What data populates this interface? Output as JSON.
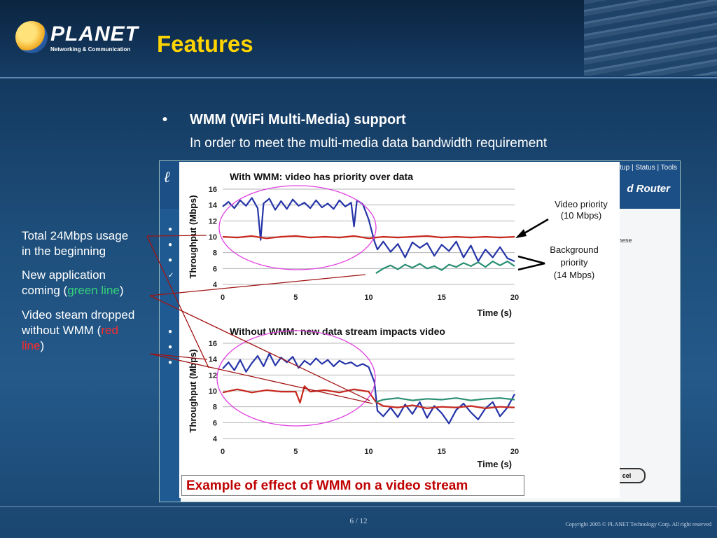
{
  "slide": {
    "title": "Features",
    "bullet": "•",
    "heading": "WMM (WiFi Multi-Media) support",
    "subheading": "In order to meet the multi-media data bandwidth requirement",
    "page": "6 / 12",
    "copyright": "Copyright 2005 © PLANET Technology Corp. All right reserved"
  },
  "logo": {
    "word": "PLANET",
    "sub": "Networking & Communication"
  },
  "notes": {
    "n1_line1": "Total 24Mbps usage",
    "n1_line2": "in the beginning",
    "n2_line1": "New application",
    "n2_pre": "coming (",
    "n2_colored": "green line",
    "n2_post": ")",
    "n3_line1": "Video steam dropped",
    "n3_pre": "without WMM (",
    "n3_colored1": "red",
    "n3_colored2": "line",
    "n3_post": ")"
  },
  "router": {
    "nav": "tup | Status | Tools",
    "title": "d Router",
    "side_text": "hese",
    "button": "cel"
  },
  "caption": "Example of effect of WMM on a video stream",
  "colors": {
    "video": "#2534a8",
    "data": "#c8281e",
    "new_app": "#2a8f72",
    "accent": "#ffd400"
  },
  "chart_data": [
    {
      "type": "line",
      "title": "With WMM: video has priority over data",
      "xlabel": "Time (s)",
      "ylabel": "Throughput (Mbps)",
      "xlim": [
        0,
        20
      ],
      "ylim": [
        4,
        16
      ],
      "xticks": [
        0,
        5,
        10,
        15,
        20
      ],
      "yticks": [
        4,
        6,
        8,
        10,
        12,
        14,
        16
      ],
      "annotations": [
        {
          "lines": [
            "Video priority",
            "(10 Mbps)"
          ]
        },
        {
          "lines": [
            "Background",
            "priority",
            "(14 Mbps)"
          ]
        }
      ],
      "series": [
        {
          "color": "#2534a8",
          "x": [
            0,
            0.4,
            0.8,
            1.2,
            1.6,
            2,
            2.4,
            2.6,
            2.8,
            3.2,
            3.6,
            4,
            4.4,
            4.8,
            5.2,
            5.6,
            6,
            6.4,
            6.8,
            7.2,
            7.6,
            8,
            8.4,
            8.8,
            9,
            9.2,
            9.6,
            10,
            10.4,
            10.6,
            11,
            11.5,
            12,
            12.5,
            13,
            13.5,
            14,
            14.5,
            15,
            15.5,
            16,
            16.5,
            17,
            17.5,
            18,
            18.5,
            19,
            19.5,
            20
          ],
          "y": [
            13.8,
            14.4,
            13.6,
            14.6,
            13.9,
            14.9,
            13.6,
            9.6,
            14.2,
            14.8,
            13.4,
            14.5,
            13.5,
            14.7,
            13.9,
            14.3,
            13.6,
            14.6,
            13.7,
            14.2,
            13.5,
            14.6,
            13.8,
            14.3,
            11.3,
            14.6,
            14.1,
            12.2,
            9.4,
            8.4,
            9.4,
            8.1,
            9.1,
            7.4,
            9.3,
            8.6,
            9.2,
            7.6,
            9.0,
            8.2,
            9.4,
            7.4,
            8.9,
            6.9,
            8.4,
            7.4,
            8.7,
            7.3,
            6.9
          ]
        },
        {
          "color": "#c8281e",
          "x": [
            0,
            1,
            2,
            3,
            4,
            5,
            6,
            7,
            8,
            9,
            10,
            11,
            12,
            13,
            14,
            15,
            16,
            17,
            18,
            19,
            20
          ],
          "y": [
            10,
            9.9,
            10.1,
            9.8,
            10,
            10.1,
            9.9,
            10,
            9.9,
            10.1,
            9.8,
            10,
            9.9,
            10,
            10.1,
            9.9,
            10,
            9.9,
            10,
            9.9,
            10
          ]
        },
        {
          "color": "#2a8f72",
          "x": [
            10.5,
            11,
            11.5,
            12,
            12.5,
            13,
            13.5,
            14,
            14.5,
            15,
            15.5,
            16,
            16.5,
            17,
            17.5,
            18,
            18.5,
            19,
            19.5,
            20
          ],
          "y": [
            5.4,
            6.0,
            6.4,
            5.9,
            6.5,
            6.1,
            6.6,
            6.0,
            6.3,
            5.8,
            6.5,
            6.2,
            6.7,
            6.3,
            6.8,
            6.2,
            6.9,
            6.4,
            6.9,
            6.3
          ]
        }
      ]
    },
    {
      "type": "line",
      "title": "Without WMM: new data stream impacts video",
      "xlabel": "Time (s)",
      "ylabel": "Throughput (Mbps)",
      "xlim": [
        0,
        20
      ],
      "ylim": [
        4,
        16
      ],
      "xticks": [
        0,
        5,
        10,
        15,
        20
      ],
      "yticks": [
        4,
        6,
        8,
        10,
        12,
        14,
        16
      ],
      "series": [
        {
          "color": "#2534a8",
          "x": [
            0,
            0.4,
            0.8,
            1.2,
            1.6,
            2,
            2.4,
            2.8,
            3.2,
            3.6,
            4,
            4.4,
            4.8,
            5.2,
            5.6,
            6,
            6.4,
            6.8,
            7.2,
            7.6,
            8,
            8.4,
            8.8,
            9.2,
            9.6,
            10,
            10.4,
            10.6,
            11,
            11.5,
            12,
            12.5,
            13,
            13.5,
            14,
            14.5,
            15,
            15.5,
            16,
            16.5,
            17,
            17.5,
            18,
            18.5,
            19,
            19.5,
            20
          ],
          "y": [
            12.8,
            13.6,
            12.6,
            13.9,
            12.4,
            13.5,
            14.4,
            13.1,
            14.7,
            13.2,
            14.2,
            13.6,
            14.3,
            12.9,
            13.8,
            13.3,
            14.1,
            13.4,
            13.9,
            13.1,
            13.8,
            13.4,
            13.6,
            13.1,
            13.4,
            13.0,
            11.1,
            7.5,
            6.8,
            7.9,
            6.7,
            8.3,
            7.1,
            8.6,
            6.6,
            8.1,
            7.2,
            5.9,
            7.6,
            8.4,
            7.3,
            6.4,
            7.8,
            8.6,
            6.8,
            7.9,
            9.6
          ]
        },
        {
          "color": "#c8281e",
          "x": [
            0,
            1,
            2,
            3,
            4,
            5,
            5.3,
            5.6,
            6,
            7,
            8,
            9,
            10,
            10.5,
            11,
            12,
            13,
            14,
            15,
            16,
            17,
            18,
            19,
            20
          ],
          "y": [
            9.8,
            10.2,
            9.8,
            10.1,
            9.9,
            9.9,
            8.5,
            10.6,
            9.9,
            10.1,
            9.8,
            10.2,
            9.9,
            8.6,
            8.1,
            7.9,
            8.2,
            7.8,
            8.0,
            7.9,
            8.1,
            7.8,
            8.0,
            7.9
          ]
        },
        {
          "color": "#2a8f72",
          "x": [
            10.5,
            11,
            12,
            13,
            14,
            15,
            16,
            17,
            18,
            19,
            20
          ],
          "y": [
            8.6,
            8.9,
            9.1,
            8.8,
            9.0,
            8.9,
            9.1,
            8.8,
            9.0,
            9.1,
            8.9
          ]
        }
      ]
    }
  ]
}
